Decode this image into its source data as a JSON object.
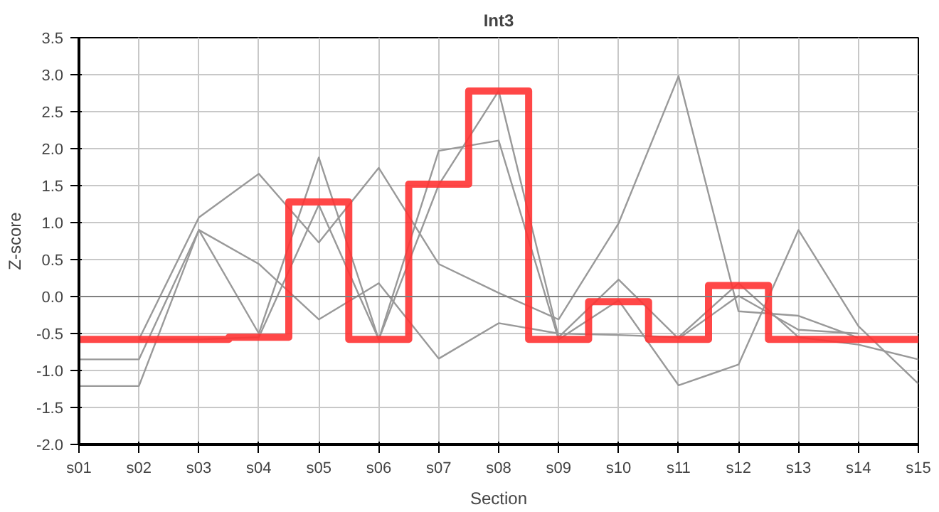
{
  "chart_data": {
    "type": "line",
    "title": "Int3",
    "xlabel": "Section",
    "ylabel": "Z-score",
    "categories": [
      "s01",
      "s02",
      "s03",
      "s04",
      "s05",
      "s06",
      "s07",
      "s08",
      "s09",
      "s10",
      "s11",
      "s12",
      "s13",
      "s14",
      "s15"
    ],
    "ylim": [
      -2.0,
      3.5
    ],
    "yticks": [
      {
        "value": -2,
        "label": "-2.0"
      },
      {
        "value": -1.5,
        "label": "-1.5"
      },
      {
        "value": -1,
        "label": "-1.0"
      },
      {
        "value": -0.5,
        "label": "-0.5"
      },
      {
        "value": 0,
        "label": "0.0"
      },
      {
        "value": 0.5,
        "label": "0.5"
      },
      {
        "value": 1,
        "label": "1.0"
      },
      {
        "value": 1.5,
        "label": "1.5"
      },
      {
        "value": 2,
        "label": "2.0"
      },
      {
        "value": 2.5,
        "label": "2.5"
      },
      {
        "value": 3,
        "label": "3.0"
      },
      {
        "value": 3.5,
        "label": "3.5"
      }
    ],
    "grid": true,
    "marker": "none",
    "line_style": "solid",
    "ref_lines": [
      {
        "axis": "y",
        "value": 0,
        "color": "#808080"
      }
    ],
    "series": [
      {
        "color": "#999999",
        "values": [
          -0.85,
          -0.85,
          0.9,
          0.44,
          -0.31,
          0.18,
          -0.84,
          -0.36,
          -0.5,
          -0.52,
          -0.55,
          0.18,
          -0.55,
          -0.65,
          -0.85
        ]
      },
      {
        "color": "#999999",
        "values": [
          -1.21,
          -1.21,
          0.9,
          -0.5,
          1.88,
          -0.58,
          1.51,
          2.78,
          -0.55,
          0.23,
          -0.57,
          0.01,
          -0.45,
          -0.5,
          null
        ]
      },
      {
        "color": "#999999",
        "values": [
          null,
          -0.58,
          1.07,
          1.66,
          0.73,
          1.74,
          0.44,
          0.05,
          -0.31,
          0.99,
          2.98,
          -0.2,
          -0.26,
          -0.56,
          null
        ]
      },
      {
        "color": "#999999",
        "values": [
          null,
          -0.58,
          -0.58,
          -0.55,
          1.24,
          -0.58,
          1.97,
          2.11,
          -0.58,
          -0.05,
          -1.2,
          -0.92,
          0.9,
          -0.4,
          -1.18
        ]
      },
      {
        "type": "step",
        "color": "#ff3333",
        "values": [
          -0.58,
          -0.58,
          -0.58,
          -0.55,
          1.28,
          -0.58,
          1.52,
          2.78,
          -0.58,
          -0.07,
          -0.58,
          0.15,
          -0.58,
          -0.58,
          -0.58
        ]
      }
    ]
  }
}
